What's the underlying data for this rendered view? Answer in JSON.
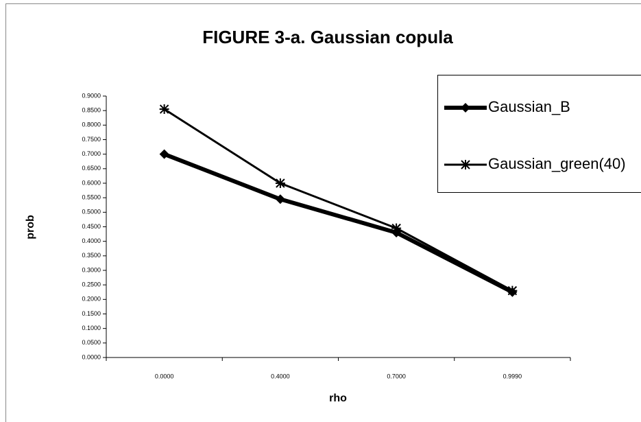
{
  "chart_data": {
    "type": "line",
    "title": "FIGURE 3-a. Gaussian copula",
    "xlabel": "rho",
    "ylabel": "prob",
    "categories": [
      "0.0000",
      "0.4000",
      "0.7000",
      "0.9990"
    ],
    "series": [
      {
        "name": "Gaussian_B",
        "color": "#000000",
        "marker": "diamond",
        "values": [
          0.7,
          0.545,
          0.43,
          0.225
        ]
      },
      {
        "name": "Gaussian_green(40)",
        "color": "#000000",
        "marker": "asterisk",
        "values": [
          0.855,
          0.6,
          0.445,
          0.23
        ]
      }
    ],
    "ylim": [
      0,
      0.9
    ],
    "yticks": [
      {
        "value": 0,
        "label": "0.0000"
      },
      {
        "value": 0.05,
        "label": "0.0500"
      },
      {
        "value": 0.1,
        "label": "0.1000"
      },
      {
        "value": 0.15,
        "label": "0.1500"
      },
      {
        "value": 0.2,
        "label": "0.2000"
      },
      {
        "value": 0.25,
        "label": "0.2500"
      },
      {
        "value": 0.3,
        "label": "0.3000"
      },
      {
        "value": 0.35,
        "label": "0.3500"
      },
      {
        "value": 0.4,
        "label": "0.4000"
      },
      {
        "value": 0.45,
        "label": "0.4500"
      },
      {
        "value": 0.5,
        "label": "0.5000"
      },
      {
        "value": 0.55,
        "label": "0.5500"
      },
      {
        "value": 0.6,
        "label": "0.6000"
      },
      {
        "value": 0.65,
        "label": "0.6500"
      },
      {
        "value": 0.7,
        "label": "0.7000"
      },
      {
        "value": 0.75,
        "label": "0.7500"
      },
      {
        "value": 0.8,
        "label": "0.8000"
      },
      {
        "value": 0.85,
        "label": "0.8500"
      },
      {
        "value": 0.9,
        "label": "0.9000"
      }
    ],
    "grid": false,
    "legend": "upper right"
  }
}
